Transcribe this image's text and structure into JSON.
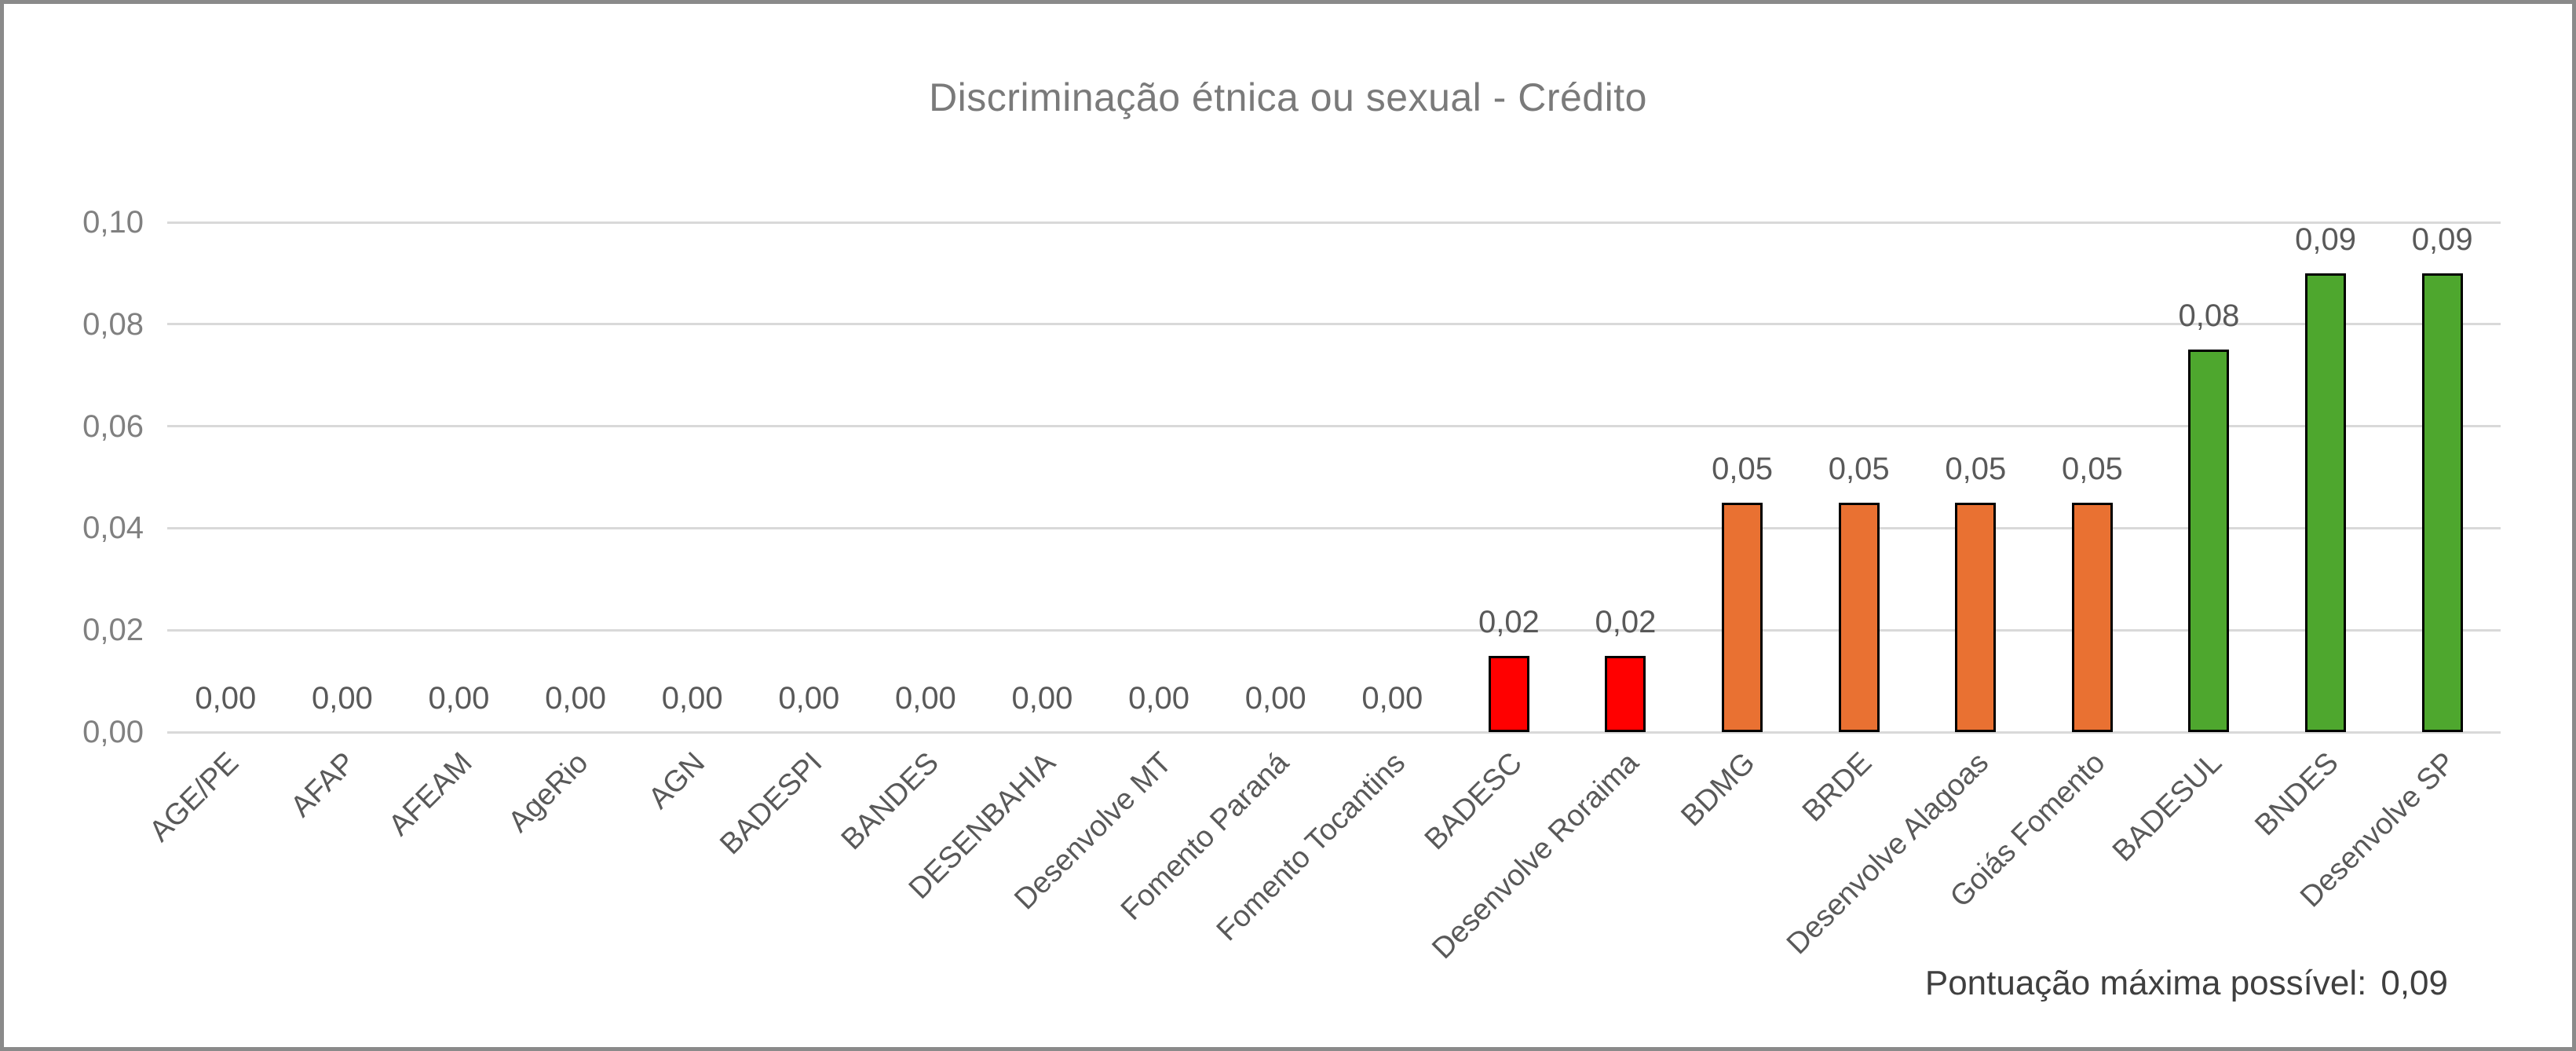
{
  "title": "Discriminação étnica ou sexual - Crédito",
  "footer": {
    "label": "Pontuação máxima possível:",
    "value": "0,09"
  },
  "y_axis": {
    "ticks": [
      "0,00",
      "0,02",
      "0,04",
      "0,06",
      "0,08",
      "0,10"
    ]
  },
  "colors": {
    "red": "#FF0000",
    "orange": "#E97132",
    "green": "#4EA72E",
    "bar_outline": "#000000",
    "gridline": "#D9D9D9",
    "title_text": "#7A7A7A",
    "axis_text": "#808080",
    "data_label_text": "#595959",
    "footer_text": "#3F3F3F",
    "frame_border": "#8A8A8A"
  },
  "chart_data": {
    "type": "bar",
    "title": "Discriminação étnica ou sexual - Crédito",
    "xlabel": "",
    "ylabel": "",
    "ylim": [
      0,
      0.1
    ],
    "grid": true,
    "legend": false,
    "categories": [
      "AGE/PE",
      "AFAP",
      "AFEAM",
      "AgeRio",
      "AGN",
      "BADESPI",
      "BANDES",
      "DESENBAHIA",
      "Desenvolve MT",
      "Fomento Paraná",
      "Fomento Tocantins",
      "BADESC",
      "Desenvolve Roraima",
      "BDMG",
      "BRDE",
      "Desenvolve Alagoas",
      "Goiás Fomento",
      "BADESUL",
      "BNDES",
      "Desenvolve SP"
    ],
    "values": [
      0,
      0,
      0,
      0,
      0,
      0,
      0,
      0,
      0,
      0,
      0,
      0.015,
      0.015,
      0.045,
      0.045,
      0.045,
      0.045,
      0.075,
      0.09,
      0.09
    ],
    "data_labels": [
      "0,00",
      "0,00",
      "0,00",
      "0,00",
      "0,00",
      "0,00",
      "0,00",
      "0,00",
      "0,00",
      "0,00",
      "0,00",
      "0,02",
      "0,02",
      "0,05",
      "0,05",
      "0,05",
      "0,05",
      "0,08",
      "0,09",
      "0,09"
    ],
    "bar_colors": [
      "",
      "",
      "",
      "",
      "",
      "",
      "",
      "",
      "",
      "",
      "",
      "#FF0000",
      "#FF0000",
      "#E97132",
      "#E97132",
      "#E97132",
      "#E97132",
      "#4EA72E",
      "#4EA72E",
      "#4EA72E"
    ]
  }
}
